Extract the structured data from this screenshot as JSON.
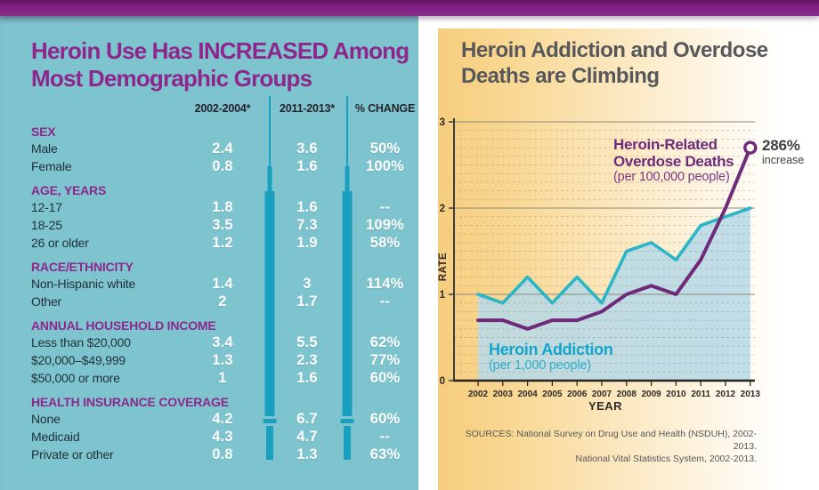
{
  "left_panel": {
    "title_line1": "Heroin Use Has INCREASED Among",
    "title_line2": "Most Demographic Groups",
    "columns": [
      "2002-2004*",
      "2011-2013*",
      "% CHANGE"
    ],
    "sections": [
      {
        "header": "SEX",
        "rows": [
          {
            "label": "Male",
            "v1": "2.4",
            "v2": "3.6",
            "change": "50%"
          },
          {
            "label": "Female",
            "v1": "0.8",
            "v2": "1.6",
            "change": "100%"
          }
        ]
      },
      {
        "header": "AGE, YEARS",
        "rows": [
          {
            "label": "12-17",
            "v1": "1.8",
            "v2": "1.6",
            "change": "--"
          },
          {
            "label": "18-25",
            "v1": "3.5",
            "v2": "7.3",
            "change": "109%"
          },
          {
            "label": "26 or older",
            "v1": "1.2",
            "v2": "1.9",
            "change": "58%"
          }
        ]
      },
      {
        "header": "RACE/ETHNICITY",
        "rows": [
          {
            "label": "Non-Hispanic white",
            "v1": "1.4",
            "v2": "3",
            "change": "114%"
          },
          {
            "label": "Other",
            "v1": "2",
            "v2": "1.7",
            "change": "--"
          }
        ]
      },
      {
        "header": "ANNUAL HOUSEHOLD INCOME",
        "rows": [
          {
            "label": "Less than $20,000",
            "v1": "3.4",
            "v2": "5.5",
            "change": "62%"
          },
          {
            "label": "$20,000–$49,999",
            "v1": "1.3",
            "v2": "2.3",
            "change": "77%"
          },
          {
            "label": "$50,000 or more",
            "v1": "1",
            "v2": "1.6",
            "change": "60%"
          }
        ]
      },
      {
        "header": "HEALTH INSURANCE COVERAGE",
        "rows": [
          {
            "label": "None",
            "v1": "4.2",
            "v2": "6.7",
            "change": "60%"
          },
          {
            "label": "Medicaid",
            "v1": "4.3",
            "v2": "4.7",
            "change": "--"
          },
          {
            "label": "Private or other",
            "v1": "0.8",
            "v2": "1.3",
            "change": "63%"
          }
        ]
      }
    ]
  },
  "right_panel": {
    "title_line1": "Heroin Addiction and Overdose",
    "title_line2": "Deaths are Climbing",
    "legend_overdose": {
      "line1": "Heroin-Related",
      "line2": "Overdose Deaths",
      "line3": "(per 100,000 people)"
    },
    "legend_addiction": {
      "line1": "Heroin Addiction",
      "line2": "(per 1,000 people)"
    },
    "annotation": {
      "value": "286%",
      "label": "increase"
    },
    "sources_line1": "SOURCES: National Survey on Drug Use and Health (NSDUH), 2002-2013.",
    "sources_line2": "National Vital Statistics System, 2002-2013."
  },
  "chart_data": {
    "type": "line",
    "title": "Heroin Addiction and Overdose Deaths are Climbing",
    "x": [
      2002,
      2003,
      2004,
      2005,
      2006,
      2007,
      2008,
      2009,
      2010,
      2011,
      2012,
      2013
    ],
    "series": [
      {
        "name": "Heroin Addiction (per 1,000 people)",
        "color": "#2cb5c6",
        "fill": "#b7d9e7",
        "area": true,
        "values": [
          1.0,
          0.9,
          1.2,
          0.9,
          1.2,
          0.9,
          1.5,
          1.6,
          1.4,
          1.8,
          1.9,
          2.0
        ]
      },
      {
        "name": "Heroin-Related Overdose Deaths (per 100,000 people)",
        "color": "#6f2a7a",
        "end_marker": true,
        "values": [
          0.7,
          0.7,
          0.6,
          0.7,
          0.7,
          0.8,
          1.0,
          1.1,
          1.0,
          1.4,
          2.0,
          2.7
        ]
      }
    ],
    "xlabel": "YEAR",
    "ylabel": "RATE",
    "ylim": [
      0,
      3
    ],
    "yticks": [
      0,
      1,
      2,
      3
    ],
    "grid": "solid major lines at integers, fine dashed minor lines every 0.1, legend as in-plot labels",
    "annotation": "286% increase marked with circle at 2013 end of overdose-deaths line"
  },
  "colors": {
    "top_bar_purple": "#7c2080",
    "left_panel_teal": "#7ec4ce",
    "title_purple": "#8e278c",
    "syringe_teal": "#199fc0",
    "value_text": "#ffffff",
    "right_title_gray": "#58585a",
    "cream_gradient_start": "#f6cd7e",
    "addiction_line": "#2cb5c6",
    "addiction_fill": "#b7d9e7",
    "overdose_line": "#6f2a7a"
  }
}
